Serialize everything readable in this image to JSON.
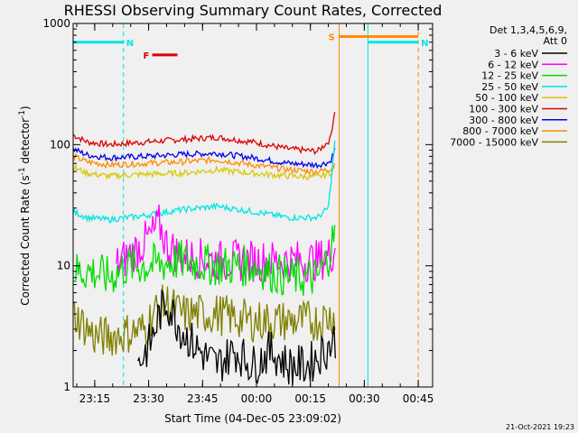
{
  "chart_data": {
    "type": "line",
    "title": "RHESSI Observing Summary Count Rates, Corrected",
    "xlabel": "Start Time (04-Dec-05 23:09:02)",
    "ylabel": "Corrected Count Rate (s",
    "ylabel_sup1": "-1",
    "ylabel_mid": " detector",
    "ylabel_sup2": "-1",
    "ylabel_end": ")",
    "y_scale": "log",
    "ylim": [
      1,
      1000
    ],
    "y_ticks": [
      {
        "value": 1,
        "label": "1"
      },
      {
        "value": 10,
        "label": "10"
      },
      {
        "value": 100,
        "label": "100"
      },
      {
        "value": 1000,
        "label": "1000"
      }
    ],
    "xlim": [
      0,
      100
    ],
    "x_ticks": [
      {
        "value": 6,
        "label": "23:15"
      },
      {
        "value": 21,
        "label": "23:30"
      },
      {
        "value": 36,
        "label": "23:45"
      },
      {
        "value": 51,
        "label": "00:00"
      },
      {
        "value": 66,
        "label": "00:15"
      },
      {
        "value": 81,
        "label": "00:30"
      },
      {
        "value": 96,
        "label": "00:45"
      }
    ],
    "legend_header": [
      "Det 1,3,4,5,6,9,",
      "Att 0"
    ],
    "legend_position": "right",
    "footer": "21-Oct-2021 19:23",
    "series": [
      {
        "name": "3 - 6 keV",
        "color": "#000000"
      },
      {
        "name": "6 - 12 keV",
        "color": "#ff00ff"
      },
      {
        "name": "12 - 25 keV",
        "color": "#00dd00"
      },
      {
        "name": "25 - 50 keV",
        "color": "#00e5e5"
      },
      {
        "name": "50 - 100 keV",
        "color": "#d8c800"
      },
      {
        "name": "100 - 300 keV",
        "color": "#dd0000"
      },
      {
        "name": "300 - 800 keV",
        "color": "#0000ee"
      },
      {
        "name": "800 - 7000 keV",
        "color": "#ff8c00"
      },
      {
        "name": "7000 - 15000 keV",
        "color": "#808000"
      }
    ],
    "profiles": [
      {
        "name": "100 - 300 keV",
        "color": "#dd0000",
        "x": [
          0,
          4,
          10,
          20,
          30,
          40,
          50,
          60,
          68,
          71.5,
          73
        ],
        "y": [
          120,
          105,
          100,
          105,
          110,
          115,
          105,
          92,
          88,
          110,
          210
        ]
      },
      {
        "name": "300 - 800 keV",
        "color": "#0000ee",
        "x": [
          0,
          4,
          10,
          20,
          30,
          40,
          50,
          60,
          68,
          71.5,
          73
        ],
        "y": [
          92,
          82,
          78,
          80,
          83,
          85,
          78,
          70,
          68,
          72,
          95
        ]
      },
      {
        "name": "800 - 7000 keV",
        "color": "#ff8c00",
        "x": [
          0,
          4,
          10,
          20,
          30,
          40,
          50,
          60,
          68,
          71.5,
          73
        ],
        "y": [
          80,
          72,
          68,
          70,
          72,
          75,
          68,
          62,
          60,
          63,
          70
        ]
      },
      {
        "name": "50 - 100 keV",
        "color": "#d8c800",
        "x": [
          0,
          4,
          10,
          20,
          30,
          40,
          50,
          60,
          68,
          71.5,
          73
        ],
        "y": [
          65,
          58,
          55,
          57,
          58,
          62,
          58,
          55,
          54,
          58,
          65
        ]
      },
      {
        "name": "25 - 50 keV",
        "color": "#00e5e5",
        "x": [
          0,
          4,
          10,
          20,
          30,
          40,
          50,
          60,
          68,
          71,
          73
        ],
        "y": [
          28,
          25,
          24,
          26,
          29,
          31,
          28,
          25,
          25,
          30,
          120
        ]
      },
      {
        "name": "6 - 12 keV",
        "color": "#ff00ff",
        "x": [
          12,
          18,
          22,
          24,
          26,
          30,
          40,
          50,
          60,
          68,
          71,
          73
        ],
        "y": [
          10,
          14,
          18,
          22,
          15,
          12,
          11,
          11,
          11,
          11,
          12,
          14
        ]
      },
      {
        "name": "12 - 25 keV",
        "color": "#00dd00",
        "x": [
          0,
          5,
          10,
          15,
          20,
          30,
          40,
          50,
          60,
          68,
          71,
          73
        ],
        "y": [
          9,
          9,
          8,
          10,
          10,
          11,
          10,
          10,
          8,
          8,
          12,
          20
        ]
      },
      {
        "name": "7000 - 15000 keV",
        "color": "#808000",
        "x": [
          0,
          4,
          6,
          10,
          20,
          22,
          26,
          30,
          40,
          50,
          60,
          68,
          73
        ],
        "y": [
          4,
          3,
          2.6,
          2.6,
          3,
          4,
          5,
          4,
          4,
          3.5,
          3.5,
          3.5,
          4
        ]
      },
      {
        "name": "3 - 6 keV",
        "color": "#000000",
        "x": [
          18,
          22,
          24,
          26,
          30,
          35,
          40,
          45,
          50,
          55,
          60,
          65,
          70,
          73
        ],
        "y": [
          1.5,
          2.5,
          4,
          5,
          3,
          2,
          1.5,
          2,
          1.5,
          2,
          1.5,
          1.5,
          2,
          2.5
        ]
      }
    ],
    "annotations": [
      {
        "label": "N",
        "kind": "night",
        "color": "#00e5e5",
        "x_range": [
          0,
          14
        ],
        "y": 700
      },
      {
        "label": "N",
        "kind": "night",
        "color": "#00e5e5",
        "x_range": [
          82,
          96
        ],
        "y": 700
      },
      {
        "label": "F",
        "kind": "flare",
        "color": "#dd0000",
        "x_range": [
          22,
          29
        ],
        "y": 550
      },
      {
        "label": "S",
        "kind": "saa",
        "color": "#ff8c00",
        "x_range": [
          74,
          96
        ],
        "y": 780
      }
    ],
    "vertical_lines": [
      {
        "x": 14,
        "color": "#00e5e5",
        "style": "dashed"
      },
      {
        "x": 74,
        "color": "#ff8c00",
        "style": "solid"
      },
      {
        "x": 82,
        "color": "#00e5e5",
        "style": "solid"
      },
      {
        "x": 96,
        "color": "#ff8c00",
        "style": "dashed"
      }
    ]
  }
}
